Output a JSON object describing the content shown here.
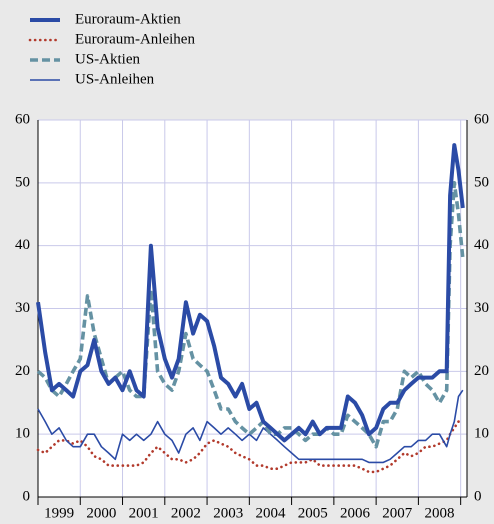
{
  "chart_data": {
    "type": "line",
    "x": [
      1999.0,
      1999.17,
      1999.33,
      1999.5,
      1999.67,
      1999.83,
      2000.0,
      2000.17,
      2000.33,
      2000.5,
      2000.67,
      2000.83,
      2001.0,
      2001.17,
      2001.33,
      2001.5,
      2001.67,
      2001.83,
      2002.0,
      2002.17,
      2002.33,
      2002.5,
      2002.67,
      2002.83,
      2003.0,
      2003.17,
      2003.33,
      2003.5,
      2003.67,
      2003.83,
      2004.0,
      2004.17,
      2004.33,
      2004.5,
      2004.67,
      2004.83,
      2005.0,
      2005.17,
      2005.33,
      2005.5,
      2005.67,
      2005.83,
      2006.0,
      2006.17,
      2006.33,
      2006.5,
      2006.67,
      2006.83,
      2007.0,
      2007.17,
      2007.33,
      2007.5,
      2007.67,
      2007.83,
      2008.0,
      2008.17,
      2008.33,
      2008.5,
      2008.67,
      2008.75,
      2008.85,
      2008.95,
      2009.05
    ],
    "series": [
      {
        "name": "Euroraum-Aktien",
        "color": "#2b4ba6",
        "style": "thick",
        "values": [
          31,
          23,
          17,
          18,
          17,
          16,
          20,
          21,
          25,
          20,
          18,
          19,
          17,
          20,
          17,
          16,
          40,
          27,
          22,
          19,
          22,
          31,
          26,
          29,
          28,
          24,
          19,
          18,
          16,
          18,
          14,
          15,
          12,
          11,
          10,
          9,
          10,
          11,
          10,
          12,
          10,
          11,
          11,
          11,
          16,
          15,
          13,
          10,
          11,
          14,
          15,
          15,
          17,
          18,
          19,
          19,
          19,
          20,
          20,
          48,
          56,
          52,
          46
        ]
      },
      {
        "name": "Euroraum-Anleihen",
        "color": "#b23a2c",
        "style": "dotted",
        "values": [
          7.5,
          7,
          8,
          9,
          9,
          8.5,
          9,
          8,
          6.5,
          6,
          5,
          5,
          5,
          5,
          5,
          5.5,
          7,
          8,
          7,
          6,
          6,
          5.5,
          6,
          7,
          8.5,
          9,
          8.5,
          8,
          7,
          6.5,
          6,
          5,
          5,
          4.5,
          4.5,
          5,
          5.5,
          5.5,
          5.5,
          6,
          5,
          5,
          5,
          5,
          5,
          5,
          4.5,
          4,
          4,
          4.5,
          5,
          6,
          7,
          6.5,
          7,
          8,
          8,
          8.5,
          9,
          10,
          11,
          12,
          12
        ]
      },
      {
        "name": "US-Aktien",
        "color": "#6592a3",
        "style": "dashed",
        "values": [
          20,
          19,
          17,
          16,
          18,
          20,
          22,
          32,
          26,
          22,
          18,
          19,
          20,
          17,
          16,
          16,
          33,
          20,
          18,
          17,
          20,
          26,
          22,
          21,
          20,
          17,
          14,
          14,
          12,
          11,
          10,
          11,
          12,
          10,
          10,
          11,
          11,
          10,
          9,
          10,
          10,
          11,
          10,
          10,
          13,
          12,
          11,
          10,
          8,
          12,
          12,
          14,
          20,
          19,
          20,
          18,
          17,
          15,
          17,
          40,
          50,
          45,
          38
        ]
      },
      {
        "name": "US-Anleihen",
        "color": "#2b4ba6",
        "style": "thin",
        "values": [
          14,
          12,
          10,
          11,
          9,
          8,
          8,
          10,
          10,
          8,
          7,
          6,
          10,
          9,
          10,
          9,
          10,
          12,
          10,
          9,
          7,
          10,
          11,
          9,
          12,
          11,
          10,
          11,
          10,
          9,
          10,
          9,
          11,
          10,
          9,
          8,
          7,
          6,
          6,
          6,
          6,
          6,
          6,
          6,
          6,
          6,
          6,
          5.5,
          5.5,
          5.5,
          6,
          7,
          8,
          8,
          9,
          9,
          10,
          10,
          8,
          10,
          12,
          16,
          17
        ]
      }
    ],
    "xlim": [
      1999,
      2009.15
    ],
    "xticks": [
      {
        "value": 1999.5,
        "label": "1999"
      },
      {
        "value": 2000.5,
        "label": "2000"
      },
      {
        "value": 2001.5,
        "label": "2001"
      },
      {
        "value": 2002.5,
        "label": "2002"
      },
      {
        "value": 2003.5,
        "label": "2003"
      },
      {
        "value": 2004.5,
        "label": "2004"
      },
      {
        "value": 2005.5,
        "label": "2005"
      },
      {
        "value": 2006.5,
        "label": "2006"
      },
      {
        "value": 2007.5,
        "label": "2007"
      },
      {
        "value": 2008.5,
        "label": "2008"
      }
    ],
    "xgrid": [
      2000,
      2001,
      2002,
      2003,
      2004,
      2005,
      2006,
      2007,
      2008,
      2009
    ],
    "ylim": [
      0,
      60
    ],
    "yticks": [
      0,
      10,
      20,
      30,
      40,
      50,
      60
    ],
    "grid": true,
    "legend": "top-left"
  }
}
